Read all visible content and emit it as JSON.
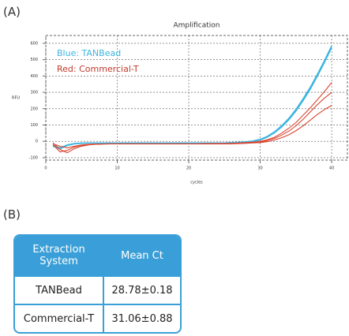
{
  "panel_labels": [
    "(A)",
    "(B)"
  ],
  "chart_data": {
    "type": "line",
    "title": "Amplification",
    "y_label": "RFU",
    "x_label": "cycles",
    "x": [
      1,
      2,
      3,
      4,
      5,
      6,
      7,
      8,
      9,
      10,
      11,
      12,
      13,
      14,
      15,
      16,
      17,
      18,
      19,
      20,
      21,
      22,
      23,
      24,
      25,
      26,
      27,
      28,
      29,
      30,
      31,
      32,
      33,
      34,
      35,
      36,
      37,
      38,
      39,
      40
    ],
    "series": [
      {
        "color": "#3bb5e0",
        "values": [
          -30,
          -45,
          -25,
          -15,
          -12,
          -10,
          -10,
          -10,
          -10,
          -10,
          -10,
          -10,
          -10,
          -10,
          -10,
          -10,
          -10,
          -10,
          -10,
          -10,
          -10,
          -10,
          -10,
          -10,
          -10,
          -8,
          -6,
          -3,
          2,
          12,
          30,
          58,
          95,
          140,
          195,
          260,
          330,
          410,
          495,
          585
        ]
      },
      {
        "color": "#3bb5e0",
        "values": [
          -25,
          -40,
          -22,
          -14,
          -11,
          -10,
          -10,
          -10,
          -10,
          -10,
          -10,
          -10,
          -10,
          -10,
          -10,
          -10,
          -10,
          -10,
          -10,
          -10,
          -10,
          -10,
          -10,
          -10,
          -10,
          -9,
          -7,
          -4,
          0,
          9,
          26,
          53,
          88,
          132,
          186,
          250,
          320,
          400,
          485,
          575
        ]
      },
      {
        "color": "#d9442f",
        "values": [
          -20,
          -65,
          -55,
          -35,
          -25,
          -20,
          -18,
          -16,
          -15,
          -15,
          -15,
          -15,
          -15,
          -15,
          -15,
          -15,
          -15,
          -15,
          -15,
          -15,
          -15,
          -14,
          -14,
          -13,
          -13,
          -12,
          -10,
          -8,
          -5,
          0,
          10,
          25,
          50,
          80,
          115,
          160,
          205,
          255,
          305,
          360
        ]
      },
      {
        "color": "#d9442f",
        "values": [
          -10,
          -50,
          -70,
          -45,
          -30,
          -22,
          -18,
          -17,
          -16,
          -16,
          -16,
          -16,
          -16,
          -16,
          -16,
          -16,
          -16,
          -16,
          -16,
          -16,
          -16,
          -16,
          -15,
          -15,
          -15,
          -14,
          -13,
          -11,
          -8,
          -5,
          5,
          18,
          38,
          62,
          95,
          135,
          180,
          225,
          265,
          300
        ]
      },
      {
        "color": "#d9442f",
        "values": [
          -15,
          -30,
          -40,
          -30,
          -22,
          -18,
          -17,
          -16,
          -16,
          -16,
          -16,
          -16,
          -16,
          -16,
          -16,
          -16,
          -16,
          -16,
          -16,
          -16,
          -16,
          -16,
          -16,
          -15,
          -15,
          -15,
          -14,
          -12,
          -10,
          -8,
          -2,
          8,
          22,
          40,
          65,
          95,
          130,
          165,
          195,
          220
        ]
      }
    ],
    "annotations": [
      {
        "text": "Blue: TANBead",
        "color": "#3bb5e0"
      },
      {
        "text": "Red: Commercial-T",
        "color": "#c0392b"
      }
    ],
    "xlim": [
      0,
      42.2
    ],
    "ylim": [
      -115,
      648
    ],
    "xticks": [
      0,
      10,
      20,
      30,
      40
    ],
    "yticks": [
      -100,
      0,
      100,
      200,
      300,
      400,
      500,
      600
    ],
    "grid": true
  },
  "table": {
    "header": [
      "Extraction System",
      "Mean Ct"
    ],
    "rows": [
      [
        "TANBead",
        "28.78±0.18"
      ],
      [
        "Commercial-T",
        "31.06±0.88"
      ]
    ]
  }
}
